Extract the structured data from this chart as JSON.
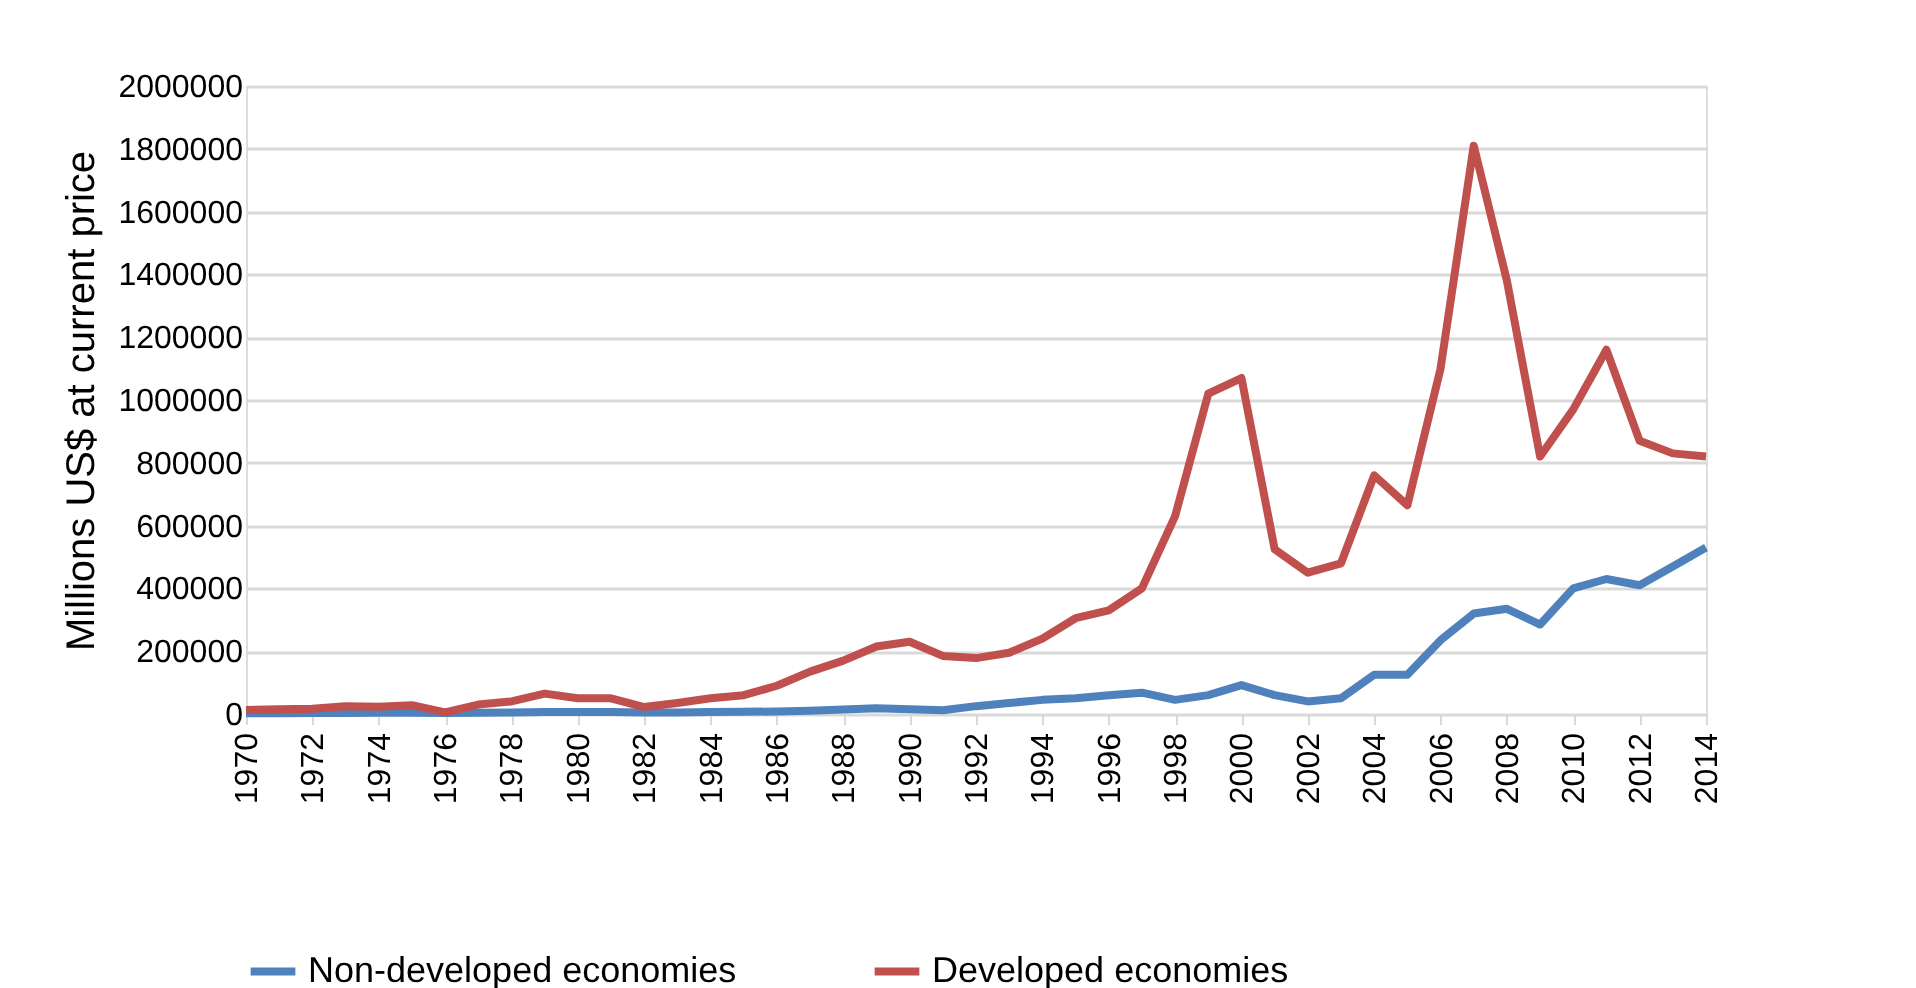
{
  "chart_data": {
    "type": "line",
    "ylabel": "Millions US$ at current price",
    "x": [
      1970,
      1971,
      1972,
      1973,
      1974,
      1975,
      1976,
      1977,
      1978,
      1979,
      1980,
      1981,
      1982,
      1983,
      1984,
      1985,
      1986,
      1987,
      1988,
      1989,
      1990,
      1991,
      1992,
      1993,
      1994,
      1995,
      1996,
      1997,
      1998,
      1999,
      2000,
      2001,
      2002,
      2003,
      2004,
      2005,
      2006,
      2007,
      2008,
      2009,
      2010,
      2011,
      2012,
      2013,
      2014
    ],
    "xlim": [
      1970,
      2014
    ],
    "xticks": [
      1970,
      1972,
      1974,
      1976,
      1978,
      1980,
      1982,
      1984,
      1986,
      1988,
      1990,
      1992,
      1994,
      1996,
      1998,
      2000,
      2002,
      2004,
      2006,
      2008,
      2010,
      2012,
      2014
    ],
    "ylim": [
      0,
      2000000
    ],
    "yticks": [
      0,
      200000,
      400000,
      600000,
      800000,
      1000000,
      1200000,
      1400000,
      1600000,
      1800000,
      2000000
    ],
    "grid": "y",
    "legend": "bottom",
    "line_style": "solid",
    "marker": "none",
    "series": [
      {
        "name": "Non-developed economies",
        "color": "#4f81bd",
        "values": [
          2000,
          2000,
          3000,
          3000,
          4000,
          4000,
          3000,
          4000,
          5000,
          6000,
          6000,
          6000,
          5000,
          5000,
          6000,
          7000,
          8000,
          10000,
          14000,
          18000,
          15000,
          12000,
          25000,
          35000,
          45000,
          50000,
          60000,
          68000,
          45000,
          60000,
          92000,
          60000,
          40000,
          50000,
          125000,
          125000,
          235000,
          320000,
          335000,
          285000,
          400000,
          430000,
          410000,
          470000,
          530000
        ]
      },
      {
        "name": "Developed economies",
        "color": "#c0504d",
        "values": [
          13000,
          15000,
          17000,
          25000,
          23000,
          28000,
          5000,
          30000,
          40000,
          65000,
          50000,
          50000,
          22000,
          35000,
          50000,
          60000,
          90000,
          135000,
          170000,
          215000,
          230000,
          185000,
          178000,
          195000,
          240000,
          305000,
          330000,
          400000,
          630000,
          1020000,
          1070000,
          525000,
          450000,
          480000,
          760000,
          665000,
          1100000,
          1810000,
          1380000,
          820000,
          970000,
          1160000,
          870000,
          830000,
          820000
        ]
      }
    ]
  }
}
